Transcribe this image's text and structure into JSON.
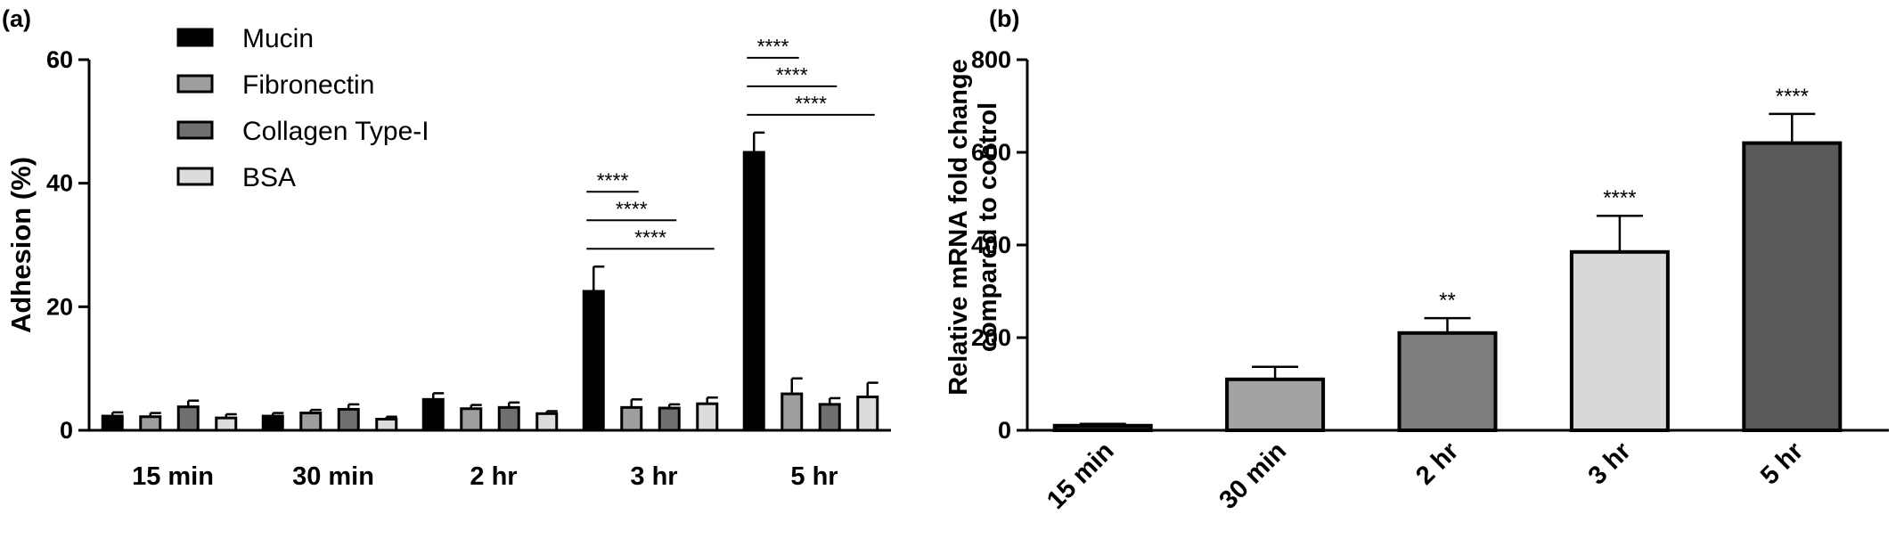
{
  "panel_a_label": "(a)",
  "panel_b_label": "(b)",
  "chart_data": [
    {
      "type": "bar",
      "ylabel": "Adhesion (%)",
      "xlabel": "",
      "ylim": [
        0,
        60
      ],
      "yticks": [
        0,
        20,
        40,
        60
      ],
      "categories": [
        "15 min",
        "30 min",
        "2 hr",
        "3 hr",
        "5 hr"
      ],
      "legend_position": "top-left",
      "series": [
        {
          "name": "Mucin",
          "color": "#000000",
          "values": [
            2.3,
            2.3,
            5.0,
            22.5,
            45.0
          ],
          "errors": [
            0.6,
            0.5,
            1.0,
            4.0,
            3.2
          ]
        },
        {
          "name": "Fibronectin",
          "color": "#9e9e9e",
          "values": [
            2.2,
            2.8,
            3.5,
            3.7,
            5.9
          ],
          "errors": [
            0.6,
            0.5,
            0.6,
            1.3,
            2.5
          ]
        },
        {
          "name": "Collagen Type-I",
          "color": "#6f6f6f",
          "values": [
            3.8,
            3.4,
            3.7,
            3.6,
            4.2
          ],
          "errors": [
            1.0,
            0.8,
            0.8,
            0.6,
            1.0
          ]
        },
        {
          "name": "BSA",
          "color": "#dcdcdc",
          "values": [
            2.0,
            1.8,
            2.7,
            4.3,
            5.4
          ],
          "errors": [
            0.6,
            0.4,
            0.4,
            1.0,
            2.3
          ]
        }
      ],
      "annotations": [
        {
          "category": "3 hr",
          "from": "Mucin",
          "to": "Fibronectin",
          "text": "****"
        },
        {
          "category": "3 hr",
          "from": "Mucin",
          "to": "Collagen Type-I",
          "text": "****"
        },
        {
          "category": "3 hr",
          "from": "Mucin",
          "to": "BSA",
          "text": "****"
        },
        {
          "category": "5 hr",
          "from": "Mucin",
          "to": "Fibronectin",
          "text": "****"
        },
        {
          "category": "5 hr",
          "from": "Mucin",
          "to": "Collagen Type-I",
          "text": "****"
        },
        {
          "category": "5 hr",
          "from": "Mucin",
          "to": "BSA",
          "text": "****"
        }
      ]
    },
    {
      "type": "bar",
      "ylabel": "Relative mRNA fold change compared to control",
      "ylabel_lines": [
        "Relative mRNA fold change",
        "compared to control"
      ],
      "xlabel": "",
      "ylim": [
        0,
        800
      ],
      "yticks": [
        0,
        200,
        400,
        600,
        800
      ],
      "categories": [
        "15 min",
        "30 min",
        "2 hr",
        "3 hr",
        "5 hr"
      ],
      "values": [
        10,
        110,
        210,
        385,
        620
      ],
      "errors": [
        4,
        27,
        32,
        78,
        63
      ],
      "colors": [
        "#1e1e1e",
        "#a3a3a3",
        "#7d7d7d",
        "#d8d8d8",
        "#595959"
      ],
      "significance": [
        "",
        "",
        "**",
        "****",
        "****"
      ]
    }
  ]
}
